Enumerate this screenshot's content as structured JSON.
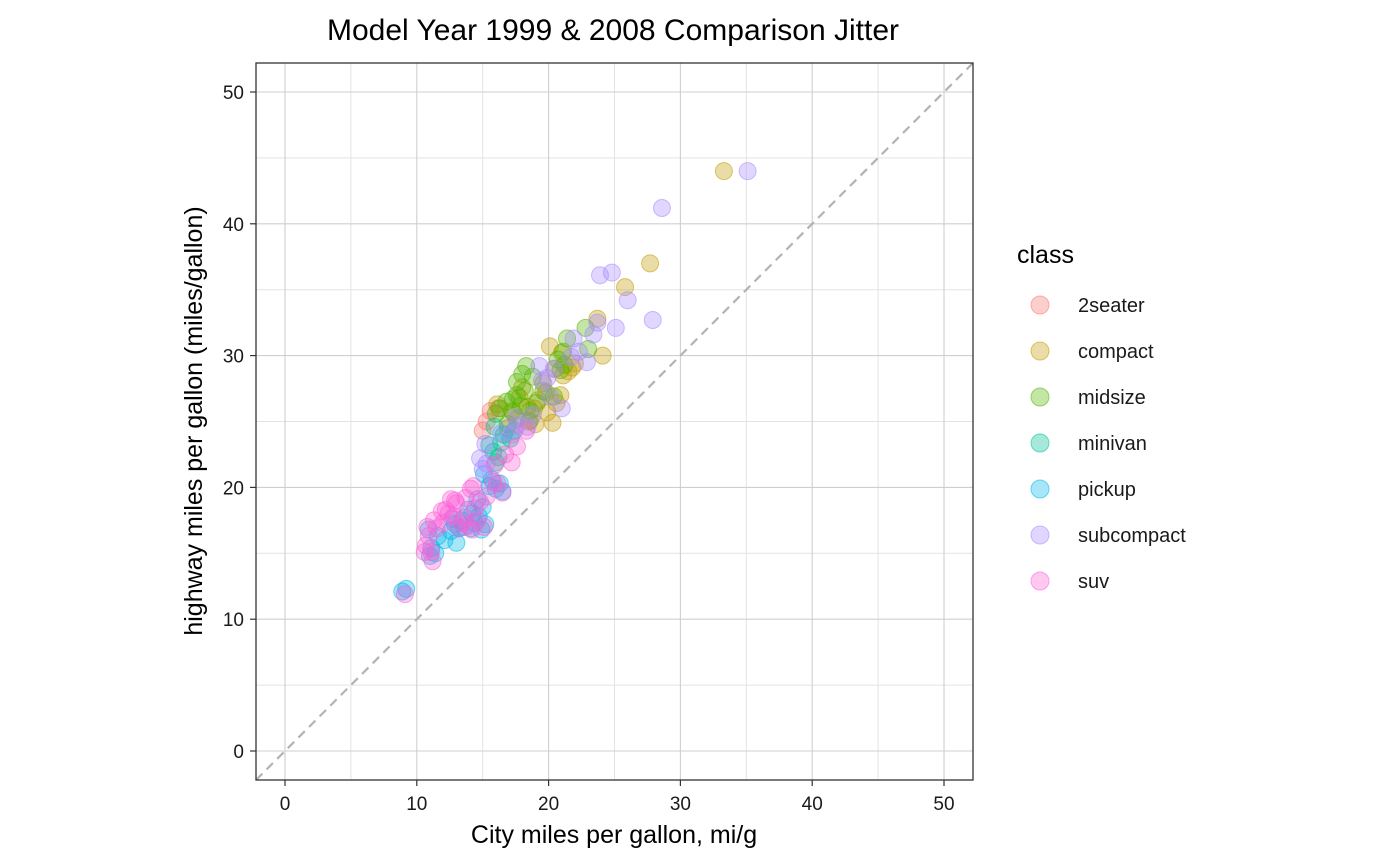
{
  "chart_data": {
    "type": "scatter",
    "title": "Model Year 1999 & 2008 Comparison Jitter",
    "xlabel": "City miles per gallon, mi/g",
    "ylabel": "highway miles per gallon (miles/gallon)",
    "xlim": [
      -2.2,
      52.2
    ],
    "ylim": [
      -2.2,
      52.2
    ],
    "xticks": [
      0,
      10,
      20,
      30,
      40,
      50
    ],
    "yticks": [
      0,
      10,
      20,
      30,
      40,
      50
    ],
    "xtick_labels": [
      "0",
      "10",
      "20",
      "30",
      "40",
      "50"
    ],
    "ytick_labels": [
      "0",
      "10",
      "20",
      "30",
      "40",
      "50"
    ],
    "grid": true,
    "reference_line": {
      "type": "y=x",
      "style": "dashed",
      "color": "#b3b3b3"
    },
    "point_opacity": 0.35,
    "legend": {
      "title": "class",
      "position": "right"
    },
    "series": [
      {
        "name": "2seater",
        "color": "#F8766D",
        "points": [
          [
            15.0,
            24.3
          ],
          [
            15.3,
            25.0
          ],
          [
            16.2,
            26.0
          ],
          [
            16.9,
            24.5
          ],
          [
            15.6,
            25.8
          ]
        ]
      },
      {
        "name": "compact",
        "color": "#C49A00",
        "points": [
          [
            33.3,
            44.0
          ],
          [
            27.7,
            37.0
          ],
          [
            25.8,
            35.2
          ],
          [
            23.7,
            32.8
          ],
          [
            24.1,
            30.0
          ],
          [
            20.1,
            30.7
          ],
          [
            21.0,
            30.2
          ],
          [
            20.5,
            29.0
          ],
          [
            21.5,
            28.8
          ],
          [
            19.8,
            27.2
          ],
          [
            19.2,
            26.6
          ],
          [
            18.9,
            26.0
          ],
          [
            18.6,
            25.1
          ],
          [
            20.3,
            24.9
          ],
          [
            18.0,
            27.6
          ],
          [
            17.8,
            26.8
          ],
          [
            21.8,
            29.1
          ],
          [
            20.6,
            26.4
          ],
          [
            19.9,
            25.7
          ],
          [
            16.1,
            26.3
          ],
          [
            17.2,
            25.8
          ],
          [
            19.0,
            24.8
          ],
          [
            18.4,
            26.1
          ],
          [
            20.9,
            27.0
          ],
          [
            22.0,
            29.4
          ],
          [
            19.6,
            27.9
          ],
          [
            17.6,
            25.2
          ],
          [
            21.1,
            28.5
          ]
        ]
      },
      {
        "name": "midsize",
        "color": "#53B400",
        "points": [
          [
            21.4,
            31.3
          ],
          [
            22.8,
            32.1
          ],
          [
            21.1,
            30.3
          ],
          [
            23.0,
            30.5
          ],
          [
            18.3,
            29.2
          ],
          [
            18.8,
            28.4
          ],
          [
            17.6,
            28.0
          ],
          [
            18.2,
            27.3
          ],
          [
            16.8,
            26.5
          ],
          [
            16.0,
            25.6
          ],
          [
            16.3,
            26.0
          ],
          [
            17.3,
            25.7
          ],
          [
            18.6,
            25.8
          ],
          [
            19.1,
            26.4
          ],
          [
            17.6,
            27.0
          ],
          [
            18.5,
            25.0
          ],
          [
            20.4,
            26.9
          ],
          [
            20.9,
            28.9
          ],
          [
            21.2,
            29.3
          ],
          [
            17.9,
            26.2
          ],
          [
            16.9,
            24.8
          ],
          [
            19.6,
            27.3
          ],
          [
            18.0,
            28.6
          ],
          [
            17.3,
            26.7
          ],
          [
            20.7,
            29.7
          ]
        ]
      },
      {
        "name": "minivan",
        "color": "#00C094",
        "points": [
          [
            15.8,
            22.7
          ],
          [
            16.0,
            21.9
          ],
          [
            16.4,
            23.4
          ],
          [
            17.4,
            24.3
          ],
          [
            15.5,
            23.2
          ],
          [
            16.6,
            24.0
          ],
          [
            17.1,
            23.7
          ],
          [
            16.2,
            22.3
          ],
          [
            15.9,
            24.6
          ]
        ]
      },
      {
        "name": "pickup",
        "color": "#00B6EB",
        "points": [
          [
            8.9,
            12.1
          ],
          [
            9.2,
            12.3
          ],
          [
            10.9,
            16.8
          ],
          [
            11.1,
            15.4
          ],
          [
            11.4,
            15.0
          ],
          [
            12.6,
            16.7
          ],
          [
            13.0,
            15.8
          ],
          [
            13.2,
            16.9
          ],
          [
            14.4,
            17.3
          ],
          [
            14.9,
            16.8
          ],
          [
            15.2,
            17.2
          ],
          [
            15.5,
            20.1
          ],
          [
            16.0,
            19.9
          ],
          [
            14.6,
            19.1
          ],
          [
            13.9,
            18.3
          ],
          [
            15.1,
            21.0
          ],
          [
            12.7,
            17.6
          ],
          [
            11.6,
            16.3
          ],
          [
            13.4,
            17.5
          ],
          [
            14.2,
            18.0
          ],
          [
            15.7,
            20.6
          ],
          [
            12.1,
            16.0
          ],
          [
            14.1,
            16.9
          ],
          [
            16.3,
            20.3
          ],
          [
            13.6,
            17.0
          ],
          [
            15.0,
            18.5
          ],
          [
            12.9,
            17.2
          ],
          [
            11.0,
            14.8
          ],
          [
            16.5,
            19.7
          ],
          [
            14.7,
            17.8
          ]
        ]
      },
      {
        "name": "subcompact",
        "color": "#A58AFF",
        "points": [
          [
            35.1,
            44.0
          ],
          [
            28.6,
            41.2
          ],
          [
            24.8,
            36.3
          ],
          [
            23.9,
            36.1
          ],
          [
            26.0,
            34.2
          ],
          [
            23.7,
            32.5
          ],
          [
            25.1,
            32.1
          ],
          [
            27.9,
            32.7
          ],
          [
            22.9,
            29.5
          ],
          [
            21.7,
            29.9
          ],
          [
            21.9,
            31.3
          ],
          [
            19.3,
            29.2
          ],
          [
            19.5,
            28.1
          ],
          [
            20.1,
            26.9
          ],
          [
            18.8,
            25.5
          ],
          [
            21.0,
            26.0
          ],
          [
            16.4,
            24.1
          ],
          [
            15.2,
            23.3
          ],
          [
            14.8,
            22.2
          ],
          [
            15.0,
            21.4
          ],
          [
            15.3,
            21.8
          ],
          [
            17.6,
            24.7
          ],
          [
            17.2,
            24.0
          ],
          [
            17.5,
            25.3
          ],
          [
            18.4,
            24.6
          ],
          [
            20.4,
            29.0
          ],
          [
            19.9,
            28.3
          ],
          [
            22.3,
            30.3
          ],
          [
            23.4,
            31.6
          ]
        ]
      },
      {
        "name": "suv",
        "color": "#FB61D7",
        "points": [
          [
            9.1,
            11.9
          ],
          [
            10.6,
            15.1
          ],
          [
            10.9,
            16.3
          ],
          [
            10.8,
            17.0
          ],
          [
            11.2,
            14.4
          ],
          [
            11.3,
            17.5
          ],
          [
            11.9,
            18.2
          ],
          [
            12.2,
            18.3
          ],
          [
            12.6,
            19.1
          ],
          [
            13.0,
            18.8
          ],
          [
            13.4,
            17.3
          ],
          [
            13.9,
            17.1
          ],
          [
            14.2,
            16.8
          ],
          [
            14.6,
            17.5
          ],
          [
            15.1,
            17.0
          ],
          [
            13.7,
            19.2
          ],
          [
            14.1,
            19.9
          ],
          [
            14.3,
            20.1
          ],
          [
            15.3,
            19.3
          ],
          [
            15.8,
            20.4
          ],
          [
            16.1,
            20.3
          ],
          [
            12.4,
            18.0
          ],
          [
            11.5,
            16.9
          ],
          [
            10.7,
            15.6
          ],
          [
            12.8,
            17.8
          ],
          [
            13.6,
            17.7
          ],
          [
            14.8,
            18.9
          ],
          [
            16.5,
            19.6
          ],
          [
            17.2,
            21.9
          ],
          [
            17.6,
            23.1
          ],
          [
            18.3,
            24.3
          ],
          [
            16.7,
            22.5
          ],
          [
            15.9,
            21.7
          ],
          [
            12.0,
            17.3
          ],
          [
            13.2,
            16.9
          ],
          [
            11.1,
            15.1
          ],
          [
            12.9,
            19.0
          ],
          [
            14.4,
            18.4
          ]
        ]
      }
    ]
  }
}
